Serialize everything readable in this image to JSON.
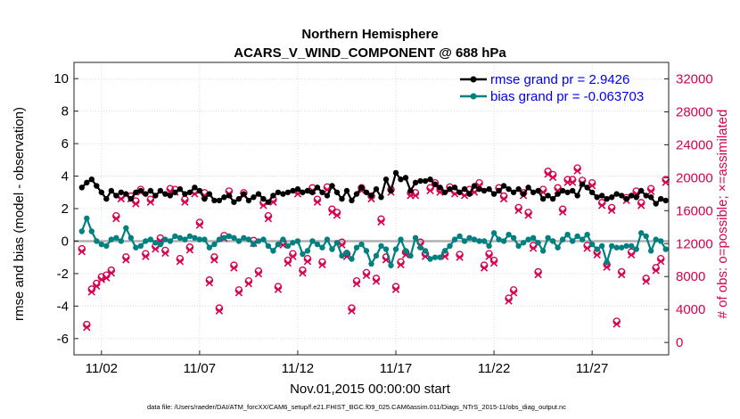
{
  "chart_data": {
    "type": "line",
    "title": "Northern Hemisphere",
    "subtitle": "ACARS_V_WIND_COMPONENT @ 688 hPa",
    "xlabel": "Nov.01,2015 00:00:00 start",
    "ylabel": "rmse and bias (model - observation)",
    "y2label": "# of obs: o=possible; ×=assimilated",
    "footer": "data file: /Users/raeder/DAI/ATM_forcXX/CAM6_setup/f.e21.FHIST_BGC.f09_025.CAM6assim.011/Diags_NTrS_2015-11/obs_diag_output.nc",
    "xlim": [
      0.6,
      30.9
    ],
    "ylim": [
      -7,
      11
    ],
    "y2lim": [
      -1500,
      34000
    ],
    "xticks": [
      {
        "value": 2,
        "label": "11/02"
      },
      {
        "value": 7,
        "label": "11/07"
      },
      {
        "value": 12,
        "label": "11/12"
      },
      {
        "value": 17,
        "label": "11/17"
      },
      {
        "value": 22,
        "label": "11/22"
      },
      {
        "value": 27,
        "label": "11/27"
      }
    ],
    "yticks": [
      {
        "value": 10,
        "label": "10"
      },
      {
        "value": 8,
        "label": "8"
      },
      {
        "value": 6,
        "label": "6"
      },
      {
        "value": 4,
        "label": "4"
      },
      {
        "value": 2,
        "label": "2"
      },
      {
        "value": 0,
        "label": "0"
      },
      {
        "value": -2,
        "label": "-2"
      },
      {
        "value": -4,
        "label": "-4"
      },
      {
        "value": -6,
        "label": "-6"
      }
    ],
    "y2ticks": [
      {
        "value": 32000,
        "label": "32000"
      },
      {
        "value": 28000,
        "label": "28000"
      },
      {
        "value": 24000,
        "label": "24000"
      },
      {
        "value": 20000,
        "label": "20000"
      },
      {
        "value": 16000,
        "label": "16000"
      },
      {
        "value": 12000,
        "label": "12000"
      },
      {
        "value": 8000,
        "label": "8000"
      },
      {
        "value": 4000,
        "label": "4000"
      },
      {
        "value": 0,
        "label": "0"
      }
    ],
    "legend_position": "top-right",
    "grid": true,
    "colors": {
      "rmse": "#000000",
      "bias": "#008080",
      "obs": "#d6004f",
      "zero_line": "#b0b0b0",
      "grid": "#d0d0d0",
      "legend_text": "#0000ee"
    },
    "x": [
      1.0,
      1.25,
      1.5,
      1.75,
      2.0,
      2.25,
      2.5,
      2.75,
      3.0,
      3.25,
      3.5,
      3.75,
      4.0,
      4.25,
      4.5,
      4.75,
      5.0,
      5.25,
      5.5,
      5.75,
      6.0,
      6.25,
      6.5,
      6.75,
      7.0,
      7.25,
      7.5,
      7.75,
      8.0,
      8.25,
      8.5,
      8.75,
      9.0,
      9.25,
      9.5,
      9.75,
      10.0,
      10.25,
      10.5,
      10.75,
      11.0,
      11.25,
      11.5,
      11.75,
      12.0,
      12.25,
      12.5,
      12.75,
      13.0,
      13.25,
      13.5,
      13.75,
      14.0,
      14.25,
      14.5,
      14.75,
      15.0,
      15.25,
      15.5,
      15.75,
      16.0,
      16.25,
      16.5,
      16.75,
      17.0,
      17.25,
      17.5,
      17.75,
      18.0,
      18.25,
      18.5,
      18.75,
      19.0,
      19.25,
      19.5,
      19.75,
      20.0,
      20.25,
      20.5,
      20.75,
      21.0,
      21.25,
      21.5,
      21.75,
      22.0,
      22.25,
      22.5,
      22.75,
      23.0,
      23.25,
      23.5,
      23.75,
      24.0,
      24.25,
      24.5,
      24.75,
      25.0,
      25.25,
      25.5,
      25.75,
      26.0,
      26.25,
      26.5,
      26.75,
      27.0,
      27.25,
      27.5,
      27.75,
      28.0,
      28.25,
      28.5,
      28.75,
      29.0,
      29.25,
      29.5,
      29.75,
      30.0,
      30.25,
      30.5,
      30.75
    ],
    "series": [
      {
        "name": "rmse grand pr = 2.9426",
        "axis": "left",
        "values": [
          3.3,
          3.6,
          3.8,
          3.4,
          3.0,
          2.6,
          3.1,
          2.8,
          3.0,
          2.9,
          2.6,
          3.0,
          3.1,
          2.9,
          3.1,
          2.8,
          3.1,
          2.9,
          2.8,
          3.0,
          3.2,
          2.9,
          3.0,
          3.3,
          3.1,
          2.6,
          2.9,
          2.5,
          2.5,
          2.7,
          2.8,
          2.4,
          2.6,
          2.9,
          2.5,
          2.7,
          2.9,
          2.6,
          2.4,
          2.8,
          3.0,
          2.9,
          3.0,
          3.1,
          3.2,
          3.0,
          3.1,
          3.0,
          3.3,
          3.0,
          2.8,
          3.4,
          3.0,
          2.6,
          3.1,
          2.5,
          2.9,
          3.3,
          3.0,
          2.8,
          3.2,
          2.7,
          3.8,
          3.1,
          4.2,
          3.8,
          3.9,
          3.1,
          3.6,
          3.7,
          3.7,
          3.8,
          3.5,
          3.3,
          3.0,
          3.2,
          3.3,
          3.0,
          3.2,
          2.9,
          3.4,
          3.2,
          3.1,
          3.2,
          2.9,
          3.1,
          3.4,
          3.2,
          3.0,
          3.2,
          2.9,
          3.3,
          3.0,
          3.1,
          2.6,
          2.8,
          2.6,
          2.9,
          3.1,
          3.0,
          3.1,
          2.8,
          3.5,
          3.3,
          3.0,
          2.7,
          2.8,
          2.6,
          2.7,
          2.9,
          2.8,
          2.6,
          2.8,
          2.7,
          3.1,
          2.8,
          2.7,
          2.3,
          2.6,
          2.5
        ]
      },
      {
        "name": "bias grand pr = -0.063703",
        "axis": "left",
        "values": [
          0.6,
          1.4,
          0.6,
          0.0,
          -0.2,
          -0.3,
          0.1,
          0.2,
          0.0,
          0.8,
          0.2,
          -0.4,
          -0.3,
          0.0,
          0.1,
          -0.1,
          -0.2,
          0.1,
          0.0,
          0.3,
          0.2,
          0.1,
          0.3,
          0.2,
          0.1,
          0.1,
          -0.4,
          -0.2,
          0.1,
          0.2,
          0.3,
          0.2,
          0.0,
          0.2,
          0.1,
          -0.2,
          0.0,
          0.1,
          -0.3,
          -0.6,
          -0.2,
          0.1,
          -0.3,
          -0.1,
          0.0,
          -0.8,
          -0.6,
          0.0,
          -0.2,
          -0.4,
          0.1,
          -0.5,
          -0.1,
          -0.9,
          -0.7,
          -1.1,
          -0.4,
          -0.2,
          -0.6,
          -1.4,
          -0.9,
          -0.3,
          -0.5,
          -1.5,
          -0.5,
          0.1,
          -0.6,
          -0.9,
          0.2,
          -0.4,
          -0.6,
          -1.1,
          -1.0,
          -1.0,
          -0.6,
          -0.3,
          0.1,
          0.3,
          0.0,
          0.2,
          0.1,
          0.0,
          0.0,
          -0.3,
          0.5,
          0.1,
          0.0,
          0.4,
          0.2,
          -0.3,
          -0.1,
          0.1,
          0.2,
          -0.1,
          -0.6,
          0.2,
          0.0,
          -0.4,
          0.1,
          0.4,
          0.0,
          0.3,
          0.1,
          0.4,
          -0.2,
          -0.5,
          -0.3,
          -1.3,
          -0.3,
          -0.4,
          -0.4,
          -0.3,
          -0.3,
          -0.5,
          0.5,
          0.3,
          -0.6,
          0.1,
          0.0,
          -0.5
        ]
      },
      {
        "name": "# of obs (possible / assimilated)",
        "axis": "right",
        "values": [
          11200,
          2000,
          6300,
          7000,
          7800,
          8000,
          8600,
          15200,
          17600,
          10200,
          17600,
          17000,
          18400,
          10600,
          17200,
          11500,
          12500,
          11000,
          18500,
          18400,
          10000,
          17200,
          11400,
          18200,
          14400,
          18000,
          7400,
          10200,
          4000,
          12800,
          18200,
          9200,
          6200,
          18000,
          7300,
          12200,
          8500,
          16800,
          15200,
          17200,
          6600,
          12000,
          9800,
          10600,
          18200,
          8600,
          10000,
          18600,
          17200,
          9600,
          18700,
          16000,
          15600,
          12000,
          10600,
          4000,
          7300,
          18600,
          8300,
          17600,
          7600,
          14800,
          10200,
          18400,
          6600,
          9600,
          10800,
          18000,
          18000,
          12000,
          10600,
          18600,
          19200,
          18400,
          10600,
          18700,
          18200,
          10500,
          18000,
          18400,
          18400,
          19200,
          9200,
          10600,
          9800,
          18600,
          17600,
          5200,
          6200,
          16200,
          18000,
          15600,
          11600,
          8400,
          18400,
          20600,
          20200,
          18600,
          16000,
          19600,
          19600,
          21000,
          19500,
          11600,
          19200,
          10800,
          16800,
          9300,
          16200,
          2400,
          8400,
          17400,
          10800,
          18200,
          16800,
          7600,
          18500,
          8900,
          10000,
          19600
        ]
      }
    ]
  }
}
